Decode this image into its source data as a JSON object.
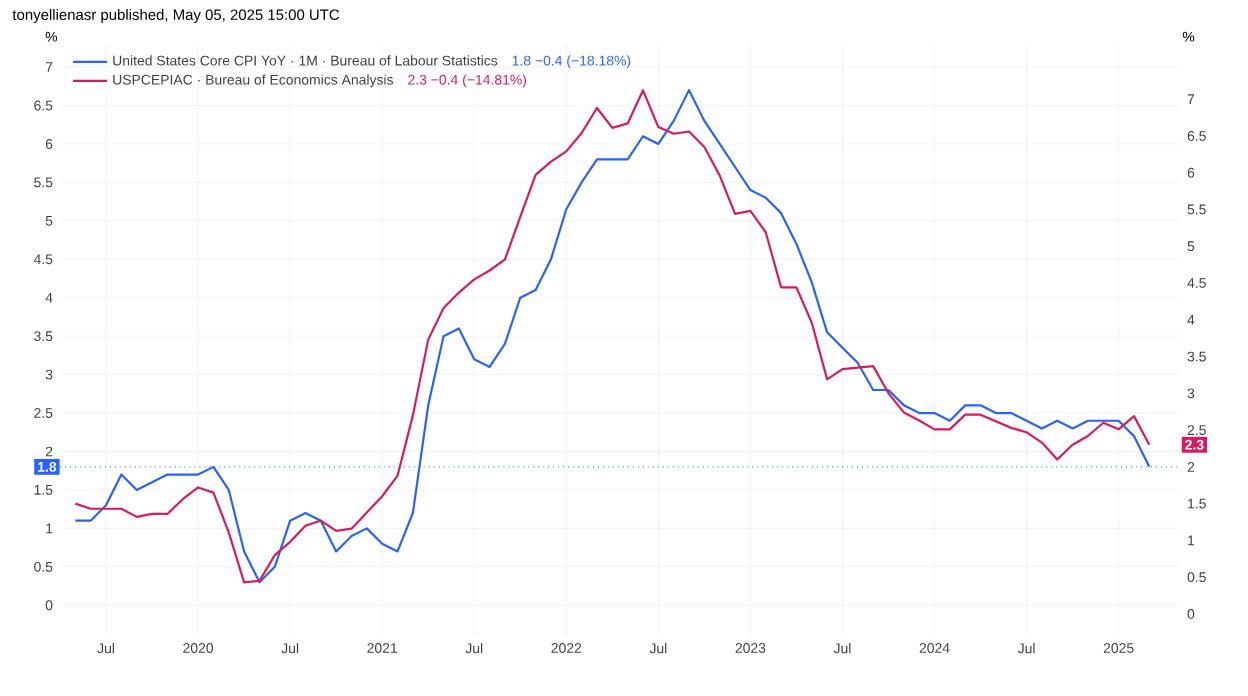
{
  "chart_data": {
    "type": "line",
    "title": "tonyellienasr published, May 05, 2025 15:00 UTC",
    "ylabel": "%",
    "y2label": "%",
    "x": [
      "2019-05",
      "2019-06",
      "2019-07",
      "2019-08",
      "2019-09",
      "2019-10",
      "2019-11",
      "2019-12",
      "2020-01",
      "2020-02",
      "2020-03",
      "2020-04",
      "2020-05",
      "2020-06",
      "2020-07",
      "2020-08",
      "2020-09",
      "2020-10",
      "2020-11",
      "2020-12",
      "2021-01",
      "2021-02",
      "2021-03",
      "2021-04",
      "2021-05",
      "2021-06",
      "2021-07",
      "2021-08",
      "2021-09",
      "2021-10",
      "2021-11",
      "2021-12",
      "2022-01",
      "2022-02",
      "2022-03",
      "2022-04",
      "2022-05",
      "2022-06",
      "2022-07",
      "2022-08",
      "2022-09",
      "2022-10",
      "2022-11",
      "2022-12",
      "2023-01",
      "2023-02",
      "2023-03",
      "2023-04",
      "2023-05",
      "2023-06",
      "2023-07",
      "2023-08",
      "2023-09",
      "2023-10",
      "2023-11",
      "2023-12",
      "2024-01",
      "2024-02",
      "2024-03",
      "2024-04",
      "2024-05",
      "2024-06",
      "2024-07",
      "2024-08",
      "2024-09",
      "2024-10",
      "2024-11",
      "2024-12",
      "2025-01",
      "2025-02",
      "2025-03"
    ],
    "series": [
      {
        "name": "United States Core CPI YoY · 1M · Bureau of Labour Statistics",
        "color": "#2962ff",
        "values": [
          1.1,
          1.1,
          1.3,
          1.7,
          1.5,
          1.6,
          1.7,
          1.7,
          1.7,
          1.8,
          1.5,
          0.7,
          0.3,
          0.5,
          1.1,
          1.2,
          1.1,
          0.7,
          0.9,
          1.0,
          0.8,
          0.7,
          1.2,
          2.6,
          3.5,
          3.6,
          3.2,
          3.1,
          3.4,
          4.0,
          4.1,
          4.5,
          5.15,
          5.5,
          5.8,
          5.8,
          5.8,
          6.1,
          6.0,
          6.3,
          6.7,
          6.3,
          6.0,
          5.7,
          5.4,
          5.3,
          5.1,
          4.7,
          4.2,
          3.55,
          3.35,
          3.15,
          2.8,
          2.8,
          2.6,
          2.5,
          2.5,
          2.4,
          2.6,
          2.6,
          2.5,
          2.5,
          2.4,
          2.3,
          2.4,
          2.3,
          2.4,
          2.4,
          2.4,
          2.2,
          1.8
        ]
      },
      {
        "name": "USPCEPIAC · Bureau of Economics Analysis",
        "color": "#d81b60",
        "axis": "y2",
        "values": [
          1.5,
          1.43,
          1.43,
          1.43,
          1.32,
          1.36,
          1.36,
          1.56,
          1.72,
          1.65,
          1.11,
          0.43,
          0.45,
          0.8,
          0.98,
          1.2,
          1.27,
          1.13,
          1.16,
          1.38,
          1.6,
          1.88,
          2.7,
          3.73,
          4.16,
          4.37,
          4.55,
          4.67,
          4.82,
          5.4,
          5.97,
          6.15,
          6.29,
          6.54,
          6.88,
          6.61,
          6.67,
          7.12,
          6.62,
          6.53,
          6.56,
          6.35,
          5.96,
          5.44,
          5.48,
          5.19,
          4.44,
          4.44,
          3.96,
          3.19,
          3.33,
          3.35,
          3.37,
          3.0,
          2.74,
          2.63,
          2.51,
          2.51,
          2.71,
          2.71,
          2.62,
          2.53,
          2.47,
          2.33,
          2.1,
          2.3,
          2.42,
          2.6,
          2.51,
          2.69,
          2.3
        ]
      }
    ],
    "annotations": [
      "1.8  −0.4 (−18.18%)",
      "2.3  −0.4 (−14.81%)",
      {
        "text": "2.3",
        "x": "2025-03",
        "y": 2.3
      }
    ],
    "ref_lines": [
      {
        "axis": "y",
        "value": 1.8,
        "label": "1.8",
        "color": "#2962ff",
        "line_style": "dotted"
      }
    ],
    "xlim": [
      "2019-04",
      "2025-05"
    ],
    "xticks": [
      {
        "value": "2019-07",
        "label": "Jul"
      },
      {
        "value": "2020-01",
        "label": "2020"
      },
      {
        "value": "2020-07",
        "label": "Jul"
      },
      {
        "value": "2021-01",
        "label": "2021"
      },
      {
        "value": "2021-07",
        "label": "Jul"
      },
      {
        "value": "2022-01",
        "label": "2022"
      },
      {
        "value": "2022-07",
        "label": "Jul"
      },
      {
        "value": "2023-01",
        "label": "2023"
      },
      {
        "value": "2023-07",
        "label": "Jul"
      },
      {
        "value": "2024-01",
        "label": "2024"
      },
      {
        "value": "2024-07",
        "label": "Jul"
      },
      {
        "value": "2025-01",
        "label": "2025"
      }
    ],
    "ylim": [
      -0.4,
      7.3
    ],
    "yticks": [
      0,
      0.5,
      1,
      1.5,
      2,
      2.5,
      3,
      3.5,
      4,
      4.5,
      5,
      5.5,
      6,
      6.5,
      7
    ],
    "y2lim": [
      -0.3,
      7.75
    ],
    "y2ticks": [
      0,
      0.5,
      1,
      1.5,
      2,
      2.5,
      3,
      3.5,
      4,
      4.5,
      5,
      5.5,
      6,
      6.5,
      7
    ],
    "grid": true,
    "legend": "top left",
    "marker": "none",
    "line_style": "solid"
  }
}
